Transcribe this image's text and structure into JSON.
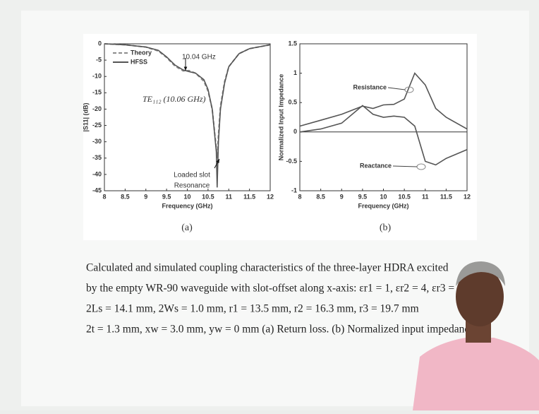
{
  "chart_data": [
    {
      "type": "line",
      "x_label": "Frequency (GHz)",
      "y_label": "|S11| (dB)",
      "sublabel": "(a)",
      "x": [
        8,
        8.5,
        9,
        9.3,
        9.5,
        9.7,
        9.9,
        10.04,
        10.2,
        10.4,
        10.5,
        10.6,
        10.7,
        10.72,
        10.75,
        10.8,
        10.9,
        11,
        11.25,
        11.5,
        12
      ],
      "series": [
        {
          "name": "Theory",
          "color": "#8c8c8c",
          "style": "dashed",
          "values": [
            0,
            -0.3,
            -1,
            -2.2,
            -4.2,
            -6.8,
            -8.3,
            -8.2,
            -9,
            -11.5,
            -14.5,
            -20,
            -32,
            -35,
            -28,
            -19,
            -11.5,
            -7,
            -3,
            -1.5,
            -0.3
          ]
        },
        {
          "name": "HFSS",
          "color": "#555555",
          "style": "solid",
          "values": [
            0,
            -0.3,
            -1,
            -2,
            -4,
            -6.5,
            -8,
            -8.5,
            -9,
            -11,
            -14,
            -20,
            -33,
            -44,
            -30,
            -20,
            -12,
            -7,
            -3,
            -1.5,
            -0.3
          ]
        }
      ],
      "annotations": [
        "10.04 GHz",
        "TE₁₁₂ (10.06 GHz)",
        "Loaded slot",
        "Resonance"
      ],
      "xlim": [
        8,
        12
      ],
      "xticks": [
        8,
        8.5,
        9,
        9.5,
        10,
        10.5,
        11,
        11.5,
        12
      ],
      "ylim": [
        -45,
        0
      ],
      "yticks": [
        0,
        -5,
        -10,
        -15,
        -20,
        -25,
        -30,
        -35,
        -40,
        -45
      ],
      "legend": "top-left"
    },
    {
      "type": "line",
      "x_label": "Frequency (GHz)",
      "y_label": "Normalized Input Impedance",
      "sublabel": "(b)",
      "x": [
        8,
        8.5,
        9,
        9.5,
        9.75,
        10,
        10.25,
        10.5,
        10.75,
        11,
        11.25,
        11.5,
        12
      ],
      "series": [
        {
          "name": "Resistance",
          "color": "#555555",
          "values": [
            0.1,
            0.2,
            0.3,
            0.44,
            0.4,
            0.46,
            0.47,
            0.56,
            1.0,
            0.8,
            0.4,
            0.25,
            0.05
          ]
        },
        {
          "name": "Reactance",
          "color": "#555555",
          "values": [
            0,
            0.05,
            0.15,
            0.45,
            0.3,
            0.25,
            0.27,
            0.25,
            0.1,
            -0.5,
            -0.56,
            -0.45,
            -0.3
          ]
        }
      ],
      "xlim": [
        8,
        12
      ],
      "xticks": [
        8,
        8.5,
        9,
        9.5,
        10,
        10.5,
        11,
        11.5,
        12
      ],
      "ylim": [
        -1,
        1.5
      ],
      "yticks": [
        -1,
        -0.5,
        0,
        0.5,
        1,
        1.5
      ]
    }
  ],
  "caption": [
    "Calculated and simulated coupling characteristics of the three-layer HDRA excited",
    "by the empty WR-90 waveguide with slot-offset along x-axis:  εr1 = 1,  εr2 = 4,  εr3 =",
    "2Ls = 14.1 mm,    2Ws = 1.0 mm,    r1 = 13.5 mm,    r2 = 16.3 mm,    r3 = 19.7 mm",
    "2t = 1.3 mm,  xw = 3.0 mm,  yw = 0 mm (a) Return loss. (b) Normalized input impedance."
  ]
}
